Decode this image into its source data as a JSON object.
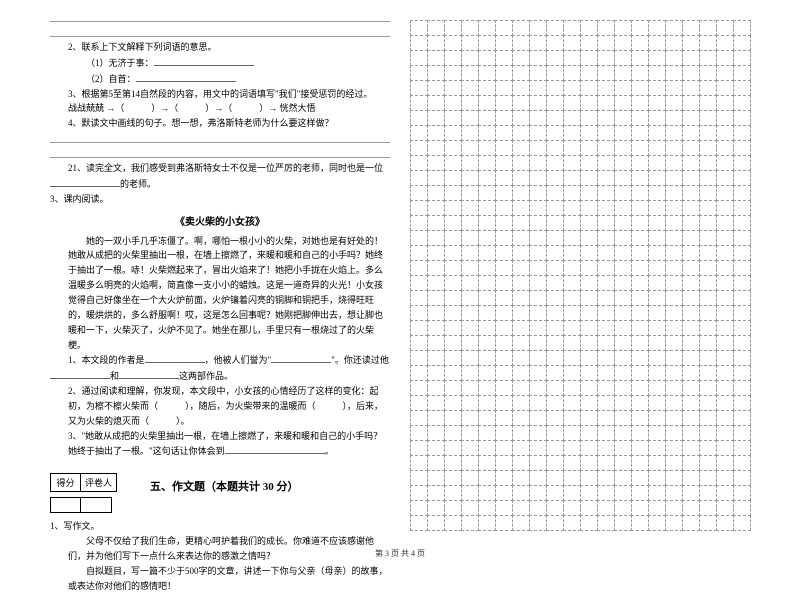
{
  "left": {
    "q2": {
      "stem": "2、联系上下文解释下列词语的意思。",
      "item1": "（1）无济于事：",
      "item2": "（2）自首："
    },
    "q3": {
      "stem": "3、根据第5至第14自然段的内容，用文中的词语填写\"我们\"接受惩罚的经过。",
      "flow": "战战兢兢 →（　　　）→（　　　）→（　　　）→ 恍然大悟"
    },
    "q4": {
      "stem": "4、默读文中画线的句子。想一想，弗洛斯特老师为什么要这样做？"
    },
    "q21": {
      "stem_a": "21、读完全文，我们感受到弗洛斯特女士不仅是一位严厉的老师，同时也是一位",
      "stem_b": "的老师。"
    },
    "k3": {
      "label": "3、课内阅读。",
      "title": "《卖火柴的小女孩》",
      "p1": "她的一双小手几乎冻僵了。啊，哪怕一根小小的火柴，对她也是有好处的！她敢从成把的火柴里抽出一根，在墙上擦燃了，来暖和暖和自己的小手吗？她终于抽出了一根。哧！火柴燃起来了，冒出火焰来了！她把小手拢在火焰上。多么温暖多么明亮的火焰啊，简直像一支小小的蜡烛。这是一道奇异的火光！小女孩觉得自己好像坐在一个大火炉前面，火炉镶着闪亮的铜脚和铜把手，烧得旺旺的，暖烘烘的，多么舒服啊！哎，这是怎么回事呢？她刚把脚伸出去，想让脚也暖和一下，火柴灭了，火炉不见了。她坐在那儿，手里只有一根烧过了的火柴梗。",
      "q1a": "1、本文段的作者是",
      "q1b": "，他被人们誉为\"",
      "q1c": "\"。你还读过他",
      "q1d": "和",
      "q1e": "这两部作品。",
      "q2": "2、通过阅读和理解，你发现，本文段中，小女孩的心情经历了这样的变化：起初，为檫不檫火柴而（　　　），随后，为火柴带来的温暖而（　　　），后来，又为火柴的熄灭而（　　　）。",
      "q3a": "3、\"她敢从成把的火柴里抽出一根，在墙上擦燃了，来暖和暖和自己的小手吗？她终于抽出了一根。\"这句话让你体会到",
      "q3b": "。"
    },
    "section5": {
      "score_label1": "得分",
      "score_label2": "评卷人",
      "header": "五、作文题（本题共计 30 分）"
    },
    "essay": {
      "label": "1、写作文。",
      "p1": "父母不仅给了我们生命，更精心呵护着我们的成长。你难道不应该感谢他们，并为他们写下一点什么来表达你的感激之情吗？",
      "p2": "自拟题目，写一篇不少于500字的文章，讲述一下你与父亲（母亲）的故事，或表达你对他们的感情吧！"
    }
  },
  "grid": {
    "rows": 34,
    "cols": 20,
    "border_style": "dashed",
    "border_color": "#999999"
  },
  "footer": "第 3 页 共 4 页",
  "colors": {
    "background": "#ffffff",
    "text": "#000000",
    "rule": "#999999"
  }
}
